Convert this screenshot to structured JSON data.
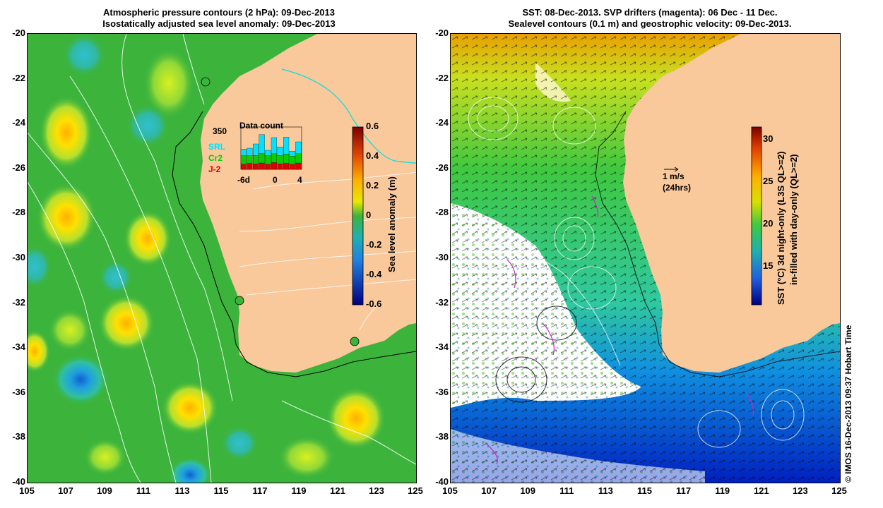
{
  "left_panel": {
    "title_line1": "Atmospheric pressure contours (2 hPa): 09-Dec-2013",
    "title_line2": "Isostatically adjusted sea level anomaly: 09-Dec-2013",
    "colorbar": {
      "label": "Sea level anomaly (m)",
      "ticks": [
        "0.6",
        "0.4",
        "0.2",
        "0",
        "-0.2",
        "-0.4",
        "-0.6"
      ]
    },
    "inset": {
      "title": "Data count",
      "max_label": "350",
      "x_ticks": [
        "-6d",
        "0",
        "4"
      ],
      "legend": [
        {
          "label": "SRL",
          "color": "#00e0ff"
        },
        {
          "label": "Cr2",
          "color": "#00d000"
        },
        {
          "label": "J-2",
          "color": "#e00000"
        }
      ],
      "bars": [
        {
          "j2": 0.12,
          "cr2": 0.2,
          "srl": 0.16
        },
        {
          "j2": 0.14,
          "cr2": 0.18,
          "srl": 0.18
        },
        {
          "j2": 0.13,
          "cr2": 0.2,
          "srl": 0.27
        },
        {
          "j2": 0.15,
          "cr2": 0.22,
          "srl": 0.45
        },
        {
          "j2": 0.12,
          "cr2": 0.2,
          "srl": 0.13
        },
        {
          "j2": 0.16,
          "cr2": 0.21,
          "srl": 0.38
        },
        {
          "j2": 0.13,
          "cr2": 0.2,
          "srl": 0.2
        },
        {
          "j2": 0.14,
          "cr2": 0.22,
          "srl": 0.4
        },
        {
          "j2": 0.12,
          "cr2": 0.19,
          "srl": 0.12
        },
        {
          "j2": 0.15,
          "cr2": 0.22,
          "srl": 0.28
        }
      ]
    }
  },
  "right_panel": {
    "title_line1": "SST: 08-Dec-2013. SVP drifters (magenta): 06 Dec - 11 Dec.",
    "title_line2": "Sealevel contours (0.1 m) and geostrophic velocity: 09-Dec-2013.",
    "velocity_scale": {
      "label1": "1 m/s",
      "label2": "(24hrs)"
    },
    "colorbar": {
      "label1": "SST (°C)  3d night-only (L3S QL>=2)",
      "label2": "in-filled with day-only (QL>=2)",
      "ticks": [
        "30",
        "25",
        "20",
        "15"
      ]
    }
  },
  "axes": {
    "y_ticks": [
      "-20",
      "-22",
      "-24",
      "-26",
      "-28",
      "-30",
      "-32",
      "-34",
      "-36",
      "-38",
      "-40"
    ],
    "x_ticks": [
      "105",
      "107",
      "109",
      "111",
      "113",
      "115",
      "117",
      "119",
      "121",
      "123",
      "125"
    ]
  },
  "credit": "© IMOS 16-Dec-2013 09:37 Hobart Time",
  "colors": {
    "land": "#f9c89b",
    "ocean_green": "#3cb43c",
    "contour": "#ffffff",
    "coast_line": "#000000",
    "drifter": "#cc22cc"
  }
}
